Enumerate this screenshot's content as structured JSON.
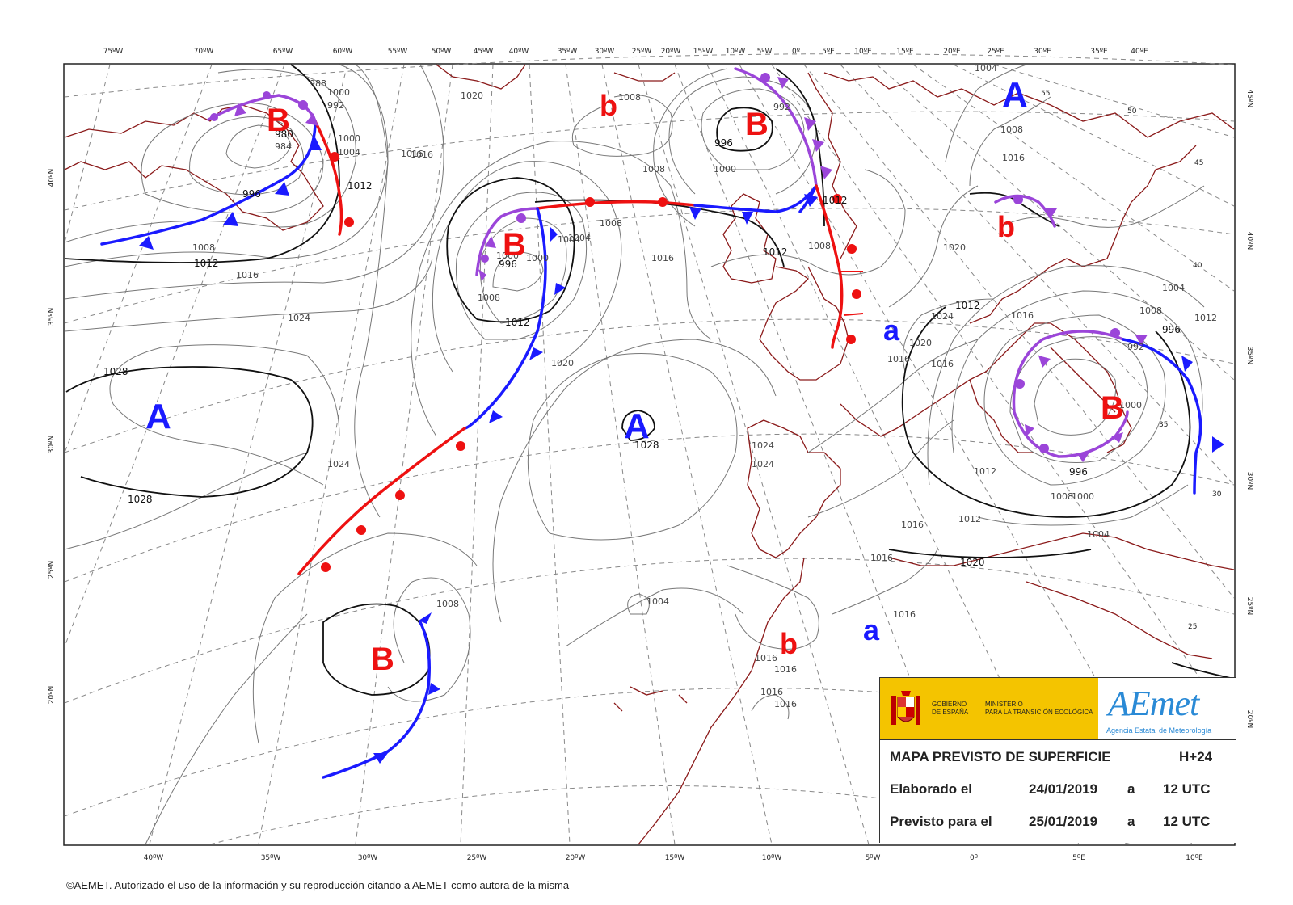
{
  "top_lon_ticks": [
    "75ºW",
    "70ºW",
    "65ºW",
    "60ºW",
    "55ºW",
    "50ºW",
    "45ºW",
    "40ºW",
    "35ºW",
    "30ºW",
    "25ºW",
    "20ºW",
    "15ºW",
    "10ºW",
    "5ºW",
    "0º",
    "5ºE",
    "10ºE",
    "15ºE",
    "20ºE",
    "25ºE",
    "30ºE",
    "35ºE",
    "40ºE"
  ],
  "bottom_lon_ticks": [
    "40ºW",
    "35ºW",
    "30ºW",
    "25ºW",
    "20ºW",
    "15ºW",
    "10ºW",
    "5ºW",
    "0º",
    "5ºE",
    "10ºE"
  ],
  "left_lat_ticks": [
    "40ºN",
    "35ºN",
    "30ºN",
    "25ºN",
    "20ºN"
  ],
  "right_lat_ticks": [
    "45ºN",
    "40ºN",
    "35ºN",
    "30ºN",
    "25ºN",
    "20ºN"
  ],
  "interior_lat_labels": [
    "55",
    "50",
    "45",
    "40",
    "35",
    "30",
    "25"
  ],
  "pressure_systems": [
    {
      "label": "B",
      "kind": "low",
      "size": "big"
    },
    {
      "label": "b",
      "kind": "low",
      "size": "small"
    },
    {
      "label": "B",
      "kind": "low",
      "size": "big"
    },
    {
      "label": "A",
      "kind": "high",
      "size": "big"
    },
    {
      "label": "B",
      "kind": "low",
      "size": "big"
    },
    {
      "label": "b",
      "kind": "low",
      "size": "small"
    },
    {
      "label": "a",
      "kind": "high",
      "size": "small"
    },
    {
      "label": "A",
      "kind": "high",
      "size": "big"
    },
    {
      "label": "A",
      "kind": "high",
      "size": "big"
    },
    {
      "label": "B",
      "kind": "low",
      "size": "big"
    },
    {
      "label": "B",
      "kind": "low",
      "size": "big"
    },
    {
      "label": "b",
      "kind": "low",
      "size": "small"
    },
    {
      "label": "a",
      "kind": "high",
      "size": "small"
    }
  ],
  "isobar_labels": [
    "988",
    "992",
    "980",
    "1000",
    "1004",
    "1012",
    "984",
    "996",
    "1000",
    "1008",
    "1012",
    "1016",
    "1016",
    "1024",
    "1028",
    "1028",
    "1020",
    "1008",
    "1008",
    "1016",
    "1004",
    "1016",
    "1000",
    "996",
    "1008",
    "1012",
    "1020",
    "1012",
    "1028",
    "1024",
    "1024",
    "1024",
    "1008",
    "1000",
    "992",
    "996",
    "1000",
    "1004",
    "1008",
    "1012",
    "1004",
    "1008",
    "1016",
    "1020",
    "1016",
    "1024",
    "1020",
    "1016",
    "1016",
    "1016",
    "1016",
    "1016",
    "1012",
    "1020",
    "1016",
    "1012",
    "1008",
    "1004",
    "992",
    "996",
    "1000",
    "996",
    "1000",
    "1004",
    "1008",
    "1012",
    "1016",
    "1012",
    "1016",
    "1016",
    "1008",
    "1004"
  ],
  "colors": {
    "cold": "#1a1aff",
    "warm": "#ee1111",
    "occluded": "#9b45d9",
    "coast": "#8b1a1a",
    "isobar": "#777777",
    "isobar_bold": "#111111",
    "graticule": "#888888"
  },
  "info": {
    "gov_line1": "GOBIERNO",
    "gov_line2": "DE ESPAÑA",
    "min_line1": "MINISTERIO",
    "min_line2": "PARA LA TRANSICIÓN ECOLÓGICA",
    "brand": "AEmet",
    "brand_sub": "Agencia Estatal de Meteorología",
    "title": "MAPA PREVISTO DE SUPERFICIE",
    "range": "H+24",
    "made_label": "Elaborado el",
    "made_date": "24/01/2019",
    "made_a": "a",
    "made_time": "12 UTC",
    "valid_label": "Previsto para el",
    "valid_date": "25/01/2019",
    "valid_a": "a",
    "valid_time": "12 UTC"
  },
  "copyright": "©AEMET. Autorizado el uso de la información y su reproducción citando a AEMET como autora de la misma"
}
